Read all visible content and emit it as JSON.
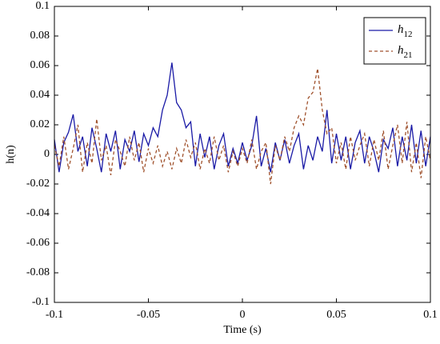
{
  "chart_data": {
    "type": "line",
    "x_label": "Time (s)",
    "y_label": "h(n)",
    "x": [
      -0.1,
      -0.0975,
      -0.095,
      -0.0925,
      -0.09,
      -0.0875,
      -0.085,
      -0.0825,
      -0.08,
      -0.0775,
      -0.075,
      -0.0725,
      -0.07,
      -0.0675,
      -0.065,
      -0.0625,
      -0.06,
      -0.0575,
      -0.055,
      -0.0525,
      -0.05,
      -0.0475,
      -0.045,
      -0.0425,
      -0.04,
      -0.0375,
      -0.035,
      -0.0325,
      -0.03,
      -0.0275,
      -0.025,
      -0.0225,
      -0.02,
      -0.0175,
      -0.015,
      -0.0125,
      -0.01,
      -0.0075,
      -0.005,
      -0.0025,
      0,
      0.0025,
      0.005,
      0.0075,
      0.01,
      0.0125,
      0.015,
      0.0175,
      0.02,
      0.0225,
      0.025,
      0.0275,
      0.03,
      0.0325,
      0.035,
      0.0375,
      0.04,
      0.0425,
      0.045,
      0.0475,
      0.05,
      0.0525,
      0.055,
      0.0575,
      0.06,
      0.0625,
      0.065,
      0.0675,
      0.07,
      0.0725,
      0.075,
      0.0775,
      0.08,
      0.0825,
      0.085,
      0.0875,
      0.09,
      0.0925,
      0.095,
      0.0975,
      0.1
    ],
    "series": [
      {
        "name": "h12",
        "color": "#1a1aa6",
        "dash": false,
        "values": [
          0.01,
          -0.012,
          0.008,
          0.015,
          0.027,
          0.002,
          0.012,
          -0.008,
          0.018,
          0.004,
          -0.012,
          0.014,
          0.002,
          0.016,
          -0.01,
          0.01,
          0.002,
          0.016,
          -0.005,
          0.014,
          0.006,
          0.018,
          0.012,
          0.03,
          0.04,
          0.062,
          0.035,
          0.03,
          0.018,
          0.022,
          -0.008,
          0.014,
          -0.002,
          0.012,
          -0.01,
          0.006,
          0.014,
          -0.008,
          0.004,
          -0.006,
          0.008,
          -0.004,
          0.006,
          0.026,
          -0.008,
          0.004,
          -0.012,
          0.008,
          -0.004,
          0.01,
          -0.006,
          0.006,
          0.014,
          -0.01,
          0.006,
          -0.004,
          0.012,
          0.002,
          0.03,
          -0.006,
          0.014,
          -0.004,
          0.012,
          -0.01,
          0.008,
          0.016,
          -0.006,
          0.012,
          0.002,
          -0.012,
          0.01,
          0.004,
          0.018,
          -0.008,
          0.012,
          -0.004,
          0.02,
          -0.006,
          0.016,
          -0.008,
          0.012
        ]
      },
      {
        "name": "h21",
        "color": "#a0522d",
        "dash": true,
        "values": [
          0.006,
          -0.008,
          0.012,
          -0.01,
          0.004,
          0.02,
          -0.012,
          0.008,
          -0.006,
          0.024,
          -0.004,
          0.006,
          -0.014,
          0.01,
          0.002,
          -0.008,
          0.012,
          -0.004,
          0.008,
          -0.012,
          0.004,
          -0.006,
          0.006,
          -0.008,
          0.002,
          -0.01,
          0.004,
          -0.006,
          0.01,
          -0.002,
          0.008,
          -0.01,
          0.004,
          -0.006,
          0.012,
          -0.004,
          0.006,
          -0.012,
          0.002,
          -0.008,
          0.004,
          -0.006,
          0.01,
          -0.01,
          0.002,
          0.008,
          -0.02,
          0.006,
          -0.004,
          0.012,
          0.002,
          0.018,
          0.026,
          0.02,
          0.038,
          0.042,
          0.058,
          0.03,
          0.014,
          0.018,
          -0.006,
          0.008,
          -0.01,
          0.012,
          -0.004,
          0.006,
          0.014,
          -0.008,
          0.01,
          -0.004,
          0.016,
          -0.01,
          0.006,
          0.02,
          -0.006,
          0.022,
          -0.012,
          0.008,
          -0.016,
          0.012,
          -0.004
        ]
      }
    ],
    "xlim": [
      -0.1,
      0.1
    ],
    "xticks": [
      -0.1,
      -0.05,
      0,
      0.05,
      0.1
    ],
    "ylim": [
      -0.1,
      0.1
    ],
    "yticks": [
      -0.1,
      -0.08,
      -0.06,
      -0.04,
      -0.02,
      0,
      0.02,
      0.04,
      0.06,
      0.08,
      0.1
    ],
    "legend": "upper right"
  }
}
